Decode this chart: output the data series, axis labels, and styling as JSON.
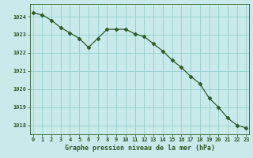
{
  "x": [
    0,
    1,
    2,
    3,
    4,
    5,
    6,
    7,
    8,
    9,
    10,
    11,
    12,
    13,
    14,
    15,
    16,
    17,
    18,
    19,
    20,
    21,
    22,
    23
  ],
  "y": [
    1024.2,
    1024.1,
    1023.8,
    1023.4,
    1023.1,
    1022.8,
    1022.3,
    1022.8,
    1023.3,
    1023.3,
    1023.3,
    1023.05,
    1022.9,
    1022.5,
    1022.1,
    1021.6,
    1021.2,
    1020.7,
    1020.3,
    1019.5,
    1019.0,
    1018.4,
    1018.0,
    1017.85
  ],
  "line_color": "#2d5a27",
  "marker": "D",
  "marker_size": 2.5,
  "bg_color": "#c8eaea",
  "grid_color": "#8ec8c8",
  "xlabel": "Graphe pression niveau de la mer (hPa)",
  "xlabel_color": "#2d5a27",
  "tick_color": "#2d5a27",
  "ylim": [
    1017.5,
    1024.7
  ],
  "xlim": [
    -0.3,
    23.3
  ],
  "yticks": [
    1018,
    1019,
    1020,
    1021,
    1022,
    1023,
    1024
  ],
  "xticks": [
    0,
    1,
    2,
    3,
    4,
    5,
    6,
    7,
    8,
    9,
    10,
    11,
    12,
    13,
    14,
    15,
    16,
    17,
    18,
    19,
    20,
    21,
    22,
    23
  ],
  "xtick_labels": [
    "0",
    "1",
    "2",
    "3",
    "4",
    "5",
    "6",
    "7",
    "8",
    "9",
    "10",
    "11",
    "12",
    "13",
    "14",
    "15",
    "16",
    "17",
    "18",
    "19",
    "20",
    "21",
    "22",
    "23"
  ]
}
